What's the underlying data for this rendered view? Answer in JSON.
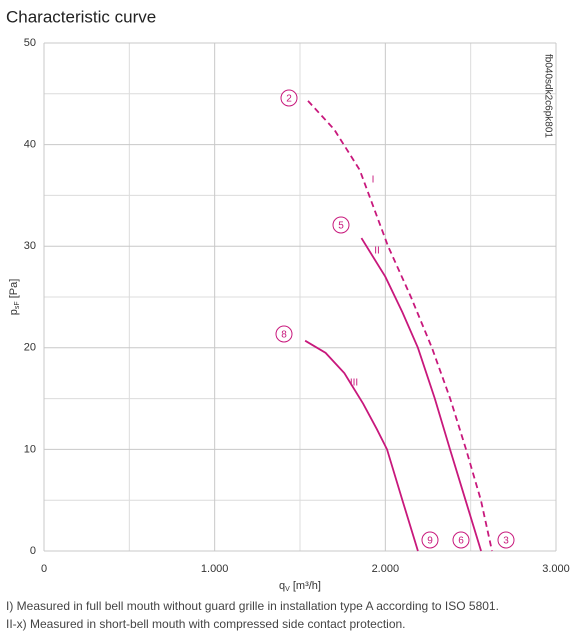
{
  "chart_data": {
    "type": "line",
    "title": "Characteristic curve",
    "y_label": {
      "main": "p",
      "sub": "sF",
      "unit": " [Pa]"
    },
    "x_label": {
      "main": "q",
      "sub": "V",
      "unit": " [m³/h]"
    },
    "xlim": [
      0,
      3000
    ],
    "ylim": [
      0,
      50
    ],
    "xticks": [
      0,
      {
        "value": 1000,
        "label": "1.000"
      },
      {
        "value": 2000,
        "label": "2.000"
      },
      {
        "value": 3000,
        "label": "3.000"
      }
    ],
    "yticks": [
      0,
      10,
      20,
      30,
      40,
      50
    ],
    "x_minor_grid": [
      500,
      1500,
      2500
    ],
    "y_minor_grid": [
      5,
      15,
      25,
      35,
      45
    ],
    "grid": true,
    "series": [
      {
        "name": "I",
        "color": "#c8187c",
        "dashed": true,
        "x": [
          1547,
          1700,
          1850,
          2016,
          2150,
          2273,
          2380,
          2473,
          2560,
          2625
        ],
        "values": [
          44.3,
          41.5,
          37.5,
          30,
          25,
          20,
          15,
          10,
          5,
          0
        ]
      },
      {
        "name": "II",
        "color": "#c8187c",
        "dashed": false,
        "x": [
          1860,
          2000,
          2100,
          2191,
          2290,
          2379,
          2470,
          2561
        ],
        "values": [
          30.8,
          27,
          23.5,
          20,
          15,
          10,
          5,
          0
        ]
      },
      {
        "name": "III",
        "color": "#c8187c",
        "dashed": false,
        "x": [
          1530,
          1650,
          1760,
          1870,
          1950,
          2010,
          2100,
          2191
        ],
        "values": [
          20.7,
          19.5,
          17.5,
          14.5,
          12,
          10,
          5,
          0
        ]
      }
    ],
    "markers": [
      "2",
      "5",
      "8",
      "9",
      "6",
      "3"
    ],
    "code": "fb040sdk2c6pk801",
    "notes": [
      "I) Measured in full bell mouth without guard grille in installation type A according to ISO 5801.",
      "II-x) Measured in short-bell mouth with compressed side contact protection."
    ]
  }
}
